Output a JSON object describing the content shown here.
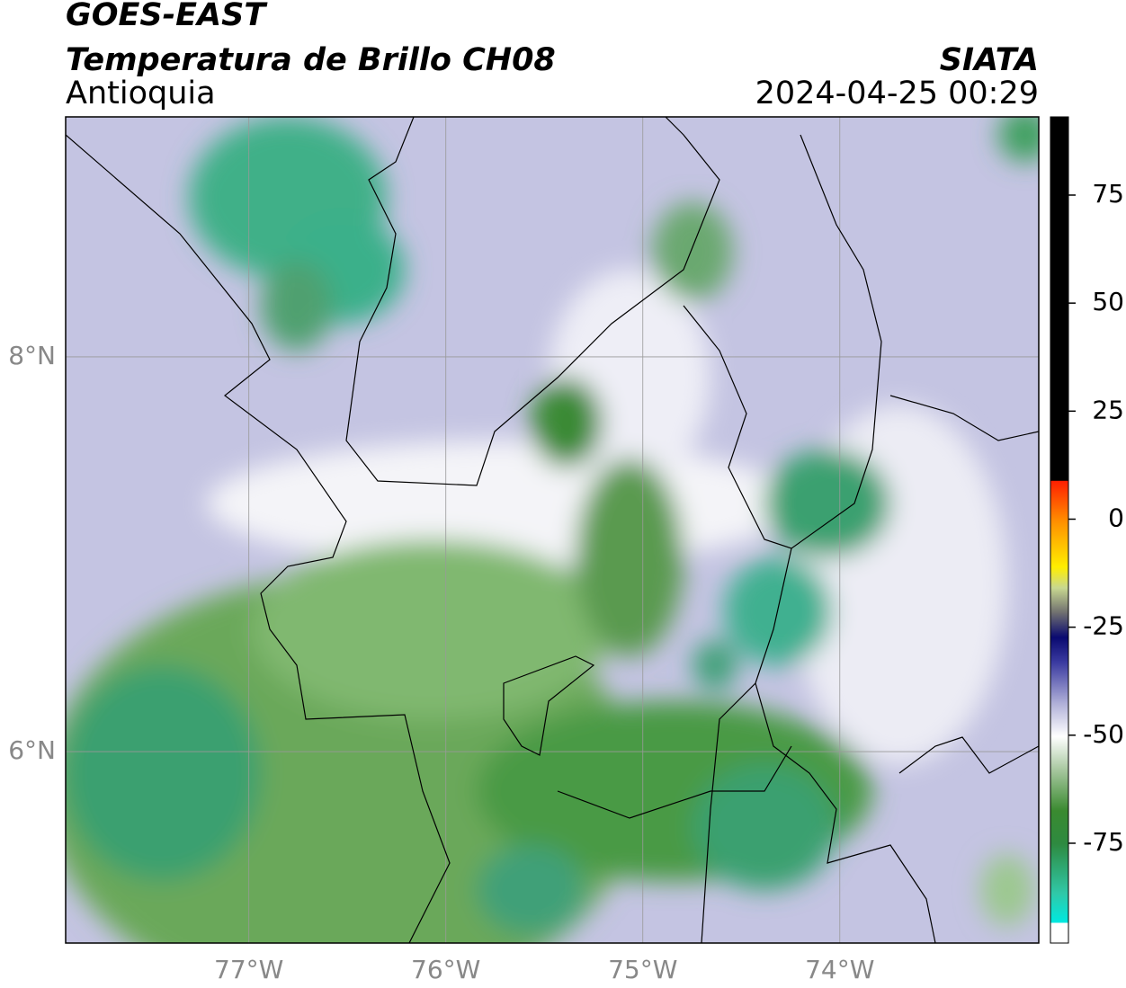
{
  "header": {
    "title": "GOES-EAST",
    "subtitle": "Temperatura de Brillo CH08",
    "region": "Antioquia",
    "source": "SIATA",
    "datetime": "2024-04-25 00:29"
  },
  "map": {
    "xlim": [
      -77.93,
      -72.99
    ],
    "ylim": [
      5.03,
      9.216
    ],
    "xticks": [
      {
        "value": -77,
        "label": "77°W"
      },
      {
        "value": -76,
        "label": "76°W"
      },
      {
        "value": -75,
        "label": "75°W"
      },
      {
        "value": -74,
        "label": "74°W"
      }
    ],
    "yticks": [
      {
        "value": 8,
        "label": "8°N"
      },
      {
        "value": 6,
        "label": "6°N"
      }
    ],
    "grid": true
  },
  "colorbar": {
    "lim": [
      -98.1,
      93.1
    ],
    "ticks": [
      75,
      50,
      25,
      0,
      -25,
      -50,
      -75
    ]
  }
}
